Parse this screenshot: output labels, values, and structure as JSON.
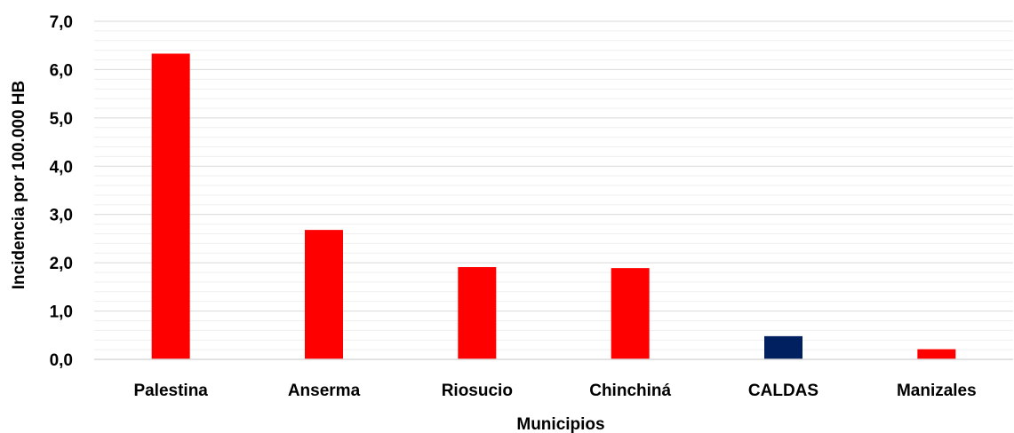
{
  "chart_data": {
    "type": "bar",
    "title": "",
    "xlabel": "Municipios",
    "ylabel": "Incidencia por 100.000 HB",
    "ylim": [
      0,
      7
    ],
    "y_ticks": [
      "0,0",
      "1,0",
      "2,0",
      "3,0",
      "4,0",
      "5,0",
      "6,0",
      "7,0"
    ],
    "categories": [
      "Palestina",
      "Anserma",
      "Riosucio",
      "Chinchiná",
      "CALDAS",
      "Manizales"
    ],
    "values": [
      6.33,
      2.68,
      1.91,
      1.89,
      0.48,
      0.21
    ],
    "bar_colors": [
      "#ff0000",
      "#ff0000",
      "#ff0000",
      "#ff0000",
      "#002060",
      "#ff0000"
    ],
    "grid": true,
    "minor_grid": true,
    "legend": "none"
  }
}
